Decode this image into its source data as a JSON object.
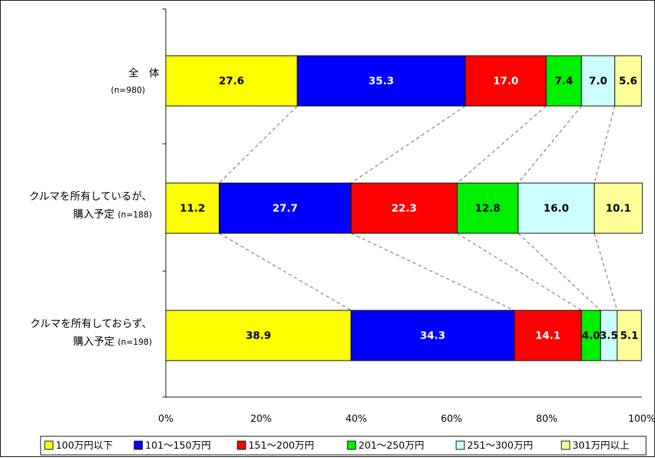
{
  "chart_data": {
    "type": "bar",
    "orientation": "horizontal",
    "stacked": "percent",
    "categories": [
      {
        "label": "全　体",
        "n": "(n=980)"
      },
      {
        "label": "クルマを所有しているが、",
        "label2": "購入予定",
        "n": "(n=188)"
      },
      {
        "label": "クルマを所有しておらず、",
        "label2": "購入予定",
        "n": "(n=198)"
      }
    ],
    "series": [
      {
        "name": "100万円以下",
        "color": "#FFFF00",
        "text_color": "#000000",
        "values": [
          27.6,
          11.2,
          38.9
        ],
        "labels": [
          "27.6",
          "11.2",
          "38.9"
        ]
      },
      {
        "name": "101～150万円",
        "color": "#0000FF",
        "text_color": "#FFFFFF",
        "values": [
          35.3,
          27.7,
          34.3
        ],
        "labels": [
          "35.3",
          "27.7",
          "34.3"
        ]
      },
      {
        "name": "151～200万円",
        "color": "#FF0000",
        "text_color": "#FFFFFF",
        "values": [
          17.0,
          22.3,
          14.1
        ],
        "labels": [
          "17.0",
          "22.3",
          "14.1"
        ]
      },
      {
        "name": "201～250万円",
        "color": "#00EE00",
        "text_color": "#000000",
        "values": [
          7.4,
          12.8,
          4.0
        ],
        "labels": [
          "7.4",
          "12.8",
          "4.0"
        ]
      },
      {
        "name": "251～300万円",
        "color": "#CCFFFF",
        "text_color": "#000000",
        "values": [
          7.0,
          16.0,
          3.5
        ],
        "labels": [
          "7.0",
          "16.0",
          "3.5"
        ]
      },
      {
        "name": "301万円以上",
        "color": "#FFFF99",
        "text_color": "#000000",
        "values": [
          5.6,
          10.1,
          5.1
        ],
        "labels": [
          "5.6",
          "10.1",
          "5.1"
        ]
      }
    ],
    "xlim": [
      0,
      100
    ],
    "x_ticks": [
      "0%",
      "20%",
      "40%",
      "60%",
      "80%",
      "100%"
    ],
    "series_lines": true,
    "grid": false,
    "legend_position": "bottom"
  }
}
